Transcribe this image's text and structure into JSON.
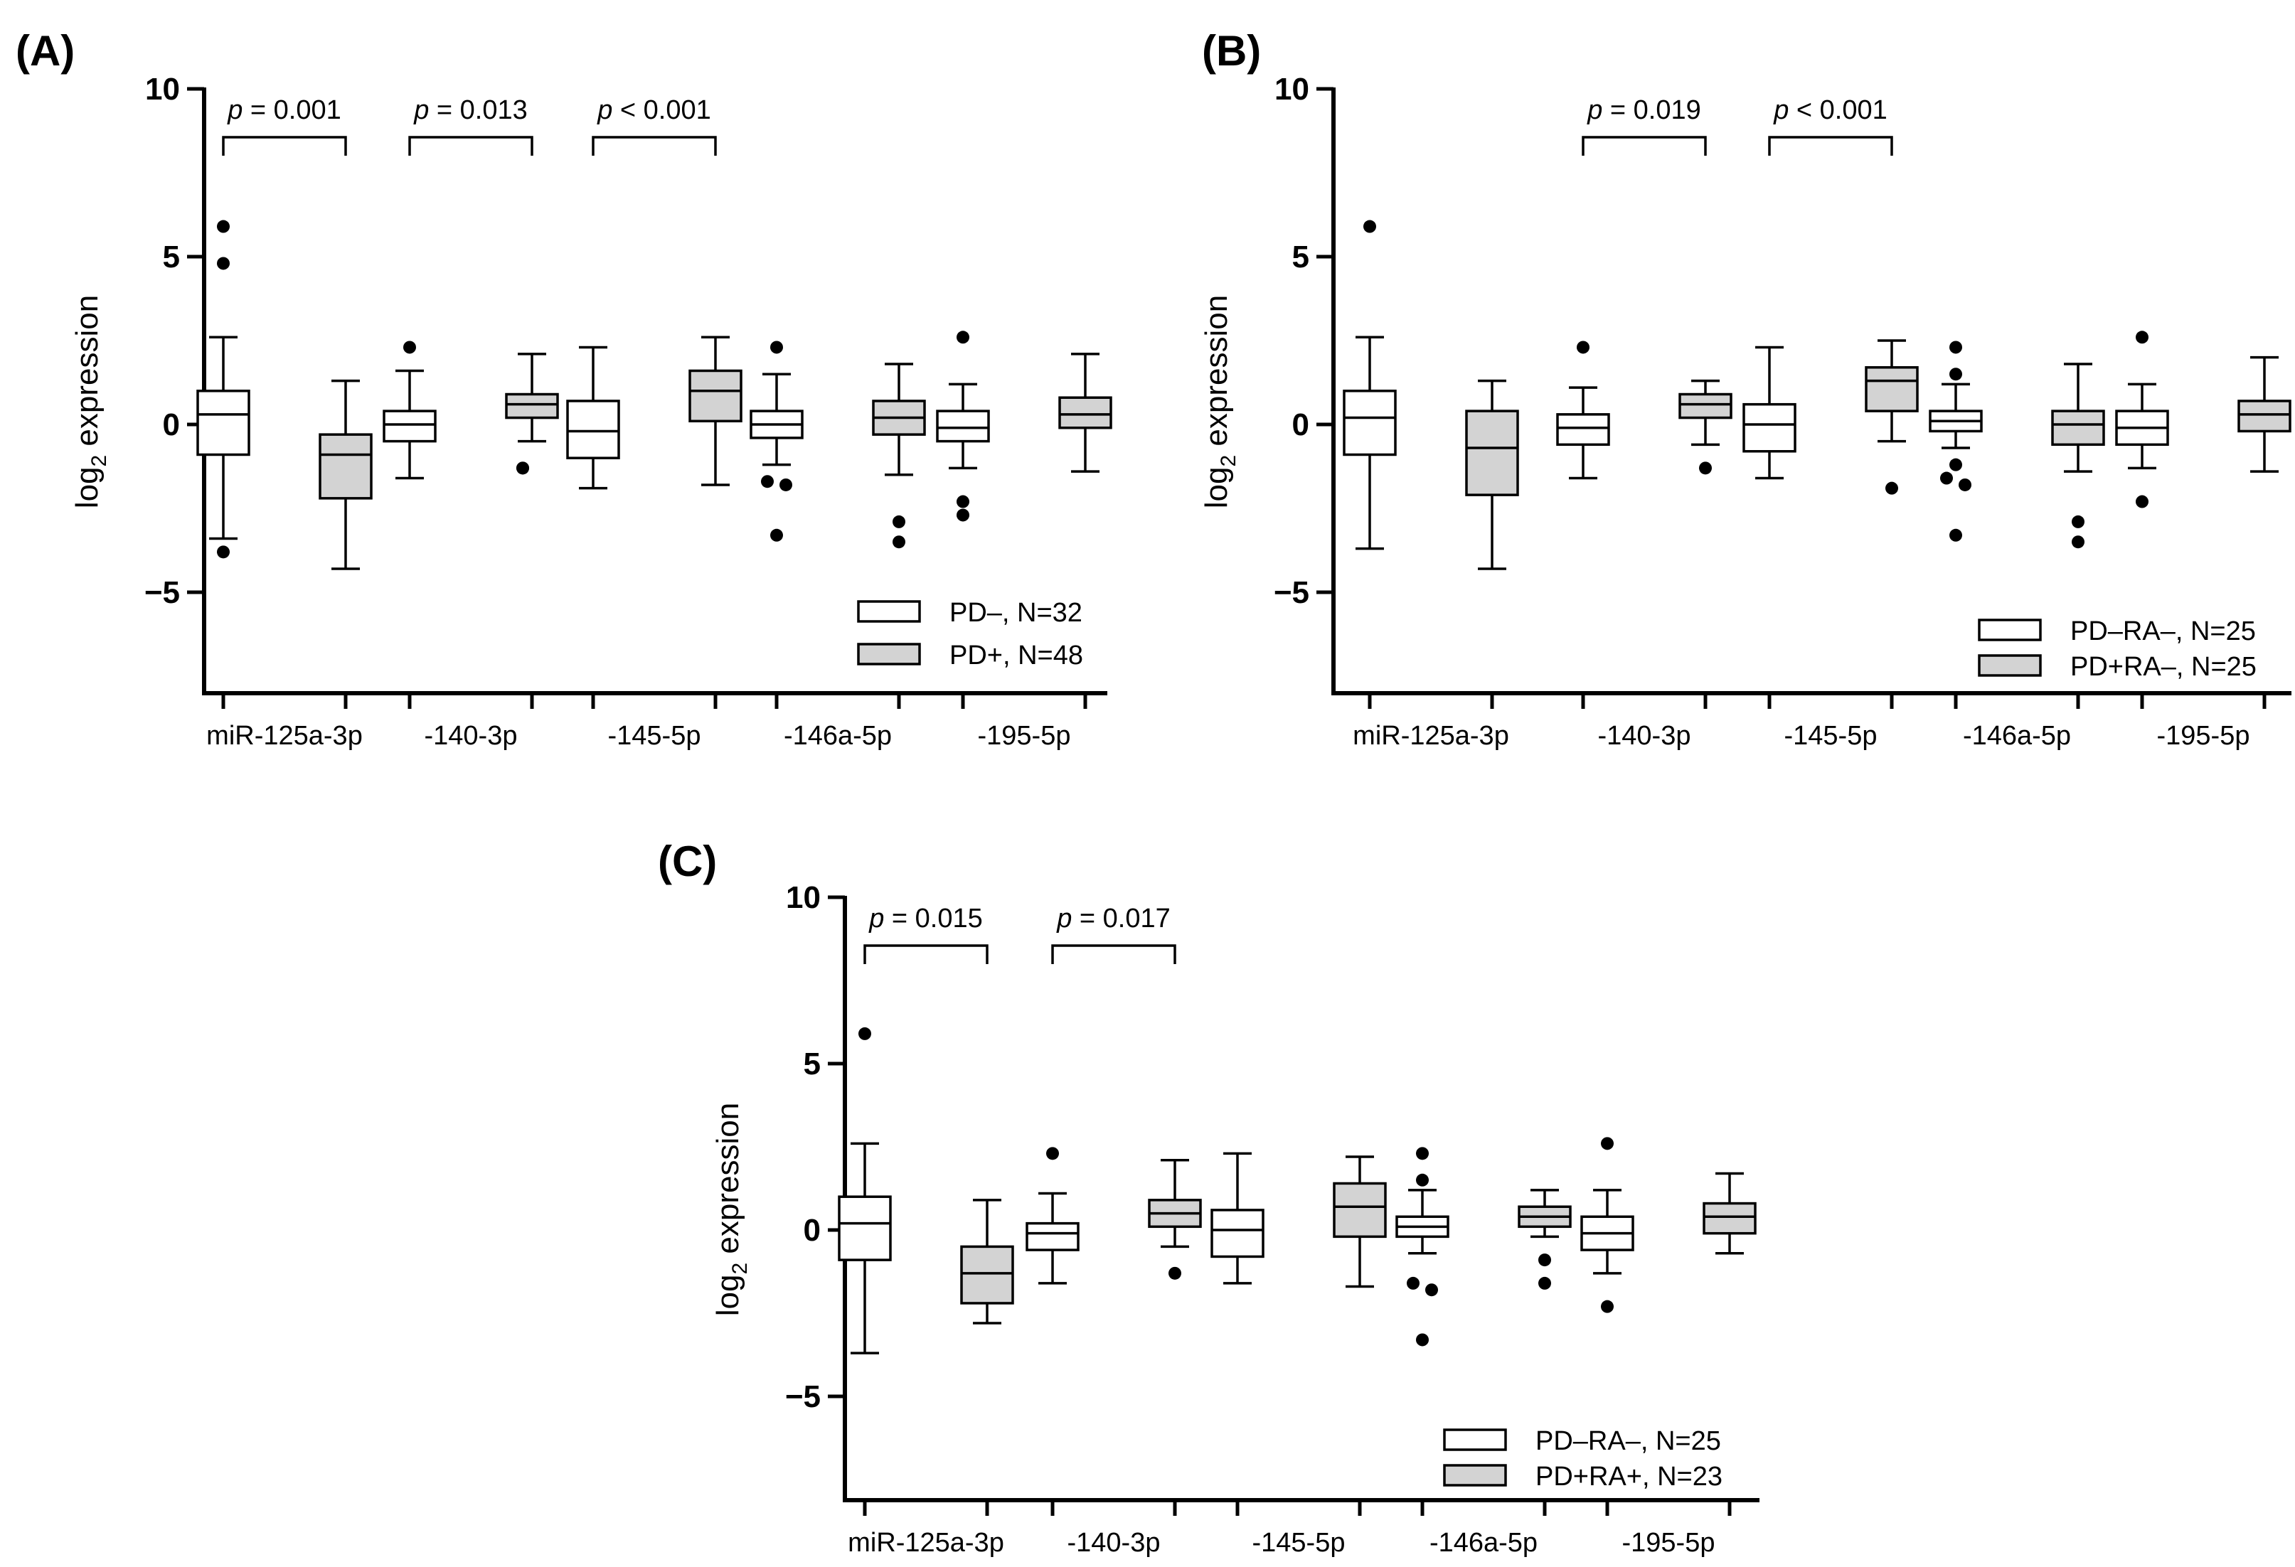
{
  "chart_data": [
    {
      "type": "boxplot",
      "panel_label": "(A)",
      "ylabel": "log",
      "ylabel_sub": "2",
      "ylabel_rest": " expression",
      "ylim": [
        -8,
        10
      ],
      "yticks": [
        10,
        5,
        0,
        -5
      ],
      "ytick_labels": [
        "10",
        "5",
        "0",
        "−5"
      ],
      "categories": [
        "miR-125a-3p",
        "-140-3p",
        "-145-5p",
        "-146a-5p",
        "-195-5p"
      ],
      "series": [
        {
          "name": "PD–, N=32",
          "fill": "#ffffff",
          "boxes": [
            {
              "q1": -0.9,
              "median": 0.3,
              "q3": 1.0,
              "wlo": -3.4,
              "whi": 2.6,
              "outliers": [
                5.9,
                4.8,
                -3.8
              ]
            },
            {
              "q1": -0.5,
              "median": 0.0,
              "q3": 0.4,
              "wlo": -1.6,
              "whi": 1.6,
              "outliers": [
                2.3
              ]
            },
            {
              "q1": -1.0,
              "median": -0.2,
              "q3": 0.7,
              "wlo": -1.9,
              "whi": 2.3,
              "outliers": []
            },
            {
              "q1": -0.4,
              "median": 0.0,
              "q3": 0.4,
              "wlo": -1.2,
              "whi": 1.5,
              "outliers": [
                2.3,
                -1.7,
                -1.8,
                -3.3
              ]
            },
            {
              "q1": -0.5,
              "median": -0.1,
              "q3": 0.4,
              "wlo": -1.3,
              "whi": 1.2,
              "outliers": [
                2.6,
                -2.3,
                -2.7
              ]
            }
          ]
        },
        {
          "name": "PD+, N=48",
          "fill": "#d3d3d3",
          "boxes": [
            {
              "q1": -2.2,
              "median": -0.9,
              "q3": -0.3,
              "wlo": -4.3,
              "whi": 1.3,
              "outliers": []
            },
            {
              "q1": 0.2,
              "median": 0.6,
              "q3": 0.9,
              "wlo": -0.5,
              "whi": 2.1,
              "outliers": [
                -1.3,
                -1.3
              ]
            },
            {
              "q1": 0.1,
              "median": 1.0,
              "q3": 1.6,
              "wlo": -1.8,
              "whi": 2.6,
              "outliers": []
            },
            {
              "q1": -0.3,
              "median": 0.2,
              "q3": 0.7,
              "wlo": -1.5,
              "whi": 1.8,
              "outliers": [
                -2.9,
                -3.5
              ]
            },
            {
              "q1": -0.1,
              "median": 0.3,
              "q3": 0.8,
              "wlo": -1.4,
              "whi": 2.1,
              "outliers": []
            }
          ]
        }
      ],
      "annotations": [
        {
          "category_index": 0,
          "p_label": "p",
          "p_text": " = 0.001"
        },
        {
          "category_index": 1,
          "p_label": "p",
          "p_text": " = 0.013"
        },
        {
          "category_index": 2,
          "p_label": "p",
          "p_text": " < 0.001"
        }
      ],
      "legend_position": "bottom-right"
    },
    {
      "type": "boxplot",
      "panel_label": "(B)",
      "ylabel": "log",
      "ylabel_sub": "2",
      "ylabel_rest": " expression",
      "ylim": [
        -8,
        10
      ],
      "yticks": [
        10,
        5,
        0,
        -5
      ],
      "ytick_labels": [
        "10",
        "5",
        "0",
        "−5"
      ],
      "categories": [
        "miR-125a-3p",
        "-140-3p",
        "-145-5p",
        "-146a-5p",
        "-195-5p"
      ],
      "series": [
        {
          "name": "PD–RA–, N=25",
          "fill": "#ffffff",
          "boxes": [
            {
              "q1": -0.9,
              "median": 0.2,
              "q3": 1.0,
              "wlo": -3.7,
              "whi": 2.6,
              "outliers": [
                5.9
              ]
            },
            {
              "q1": -0.6,
              "median": -0.1,
              "q3": 0.3,
              "wlo": -1.6,
              "whi": 1.1,
              "outliers": [
                2.3
              ]
            },
            {
              "q1": -0.8,
              "median": 0.0,
              "q3": 0.6,
              "wlo": -1.6,
              "whi": 2.3,
              "outliers": []
            },
            {
              "q1": -0.2,
              "median": 0.1,
              "q3": 0.4,
              "wlo": -0.7,
              "whi": 1.2,
              "outliers": [
                2.3,
                1.5,
                -1.2,
                -1.6,
                -1.8,
                -3.3
              ]
            },
            {
              "q1": -0.6,
              "median": -0.1,
              "q3": 0.4,
              "wlo": -1.3,
              "whi": 1.2,
              "outliers": [
                2.6,
                -2.3
              ]
            }
          ]
        },
        {
          "name": "PD+RA–, N=25",
          "fill": "#d3d3d3",
          "boxes": [
            {
              "q1": -2.1,
              "median": -0.7,
              "q3": 0.4,
              "wlo": -4.3,
              "whi": 1.3,
              "outliers": []
            },
            {
              "q1": 0.2,
              "median": 0.6,
              "q3": 0.9,
              "wlo": -0.6,
              "whi": 1.3,
              "outliers": [
                -1.3
              ]
            },
            {
              "q1": 0.4,
              "median": 1.3,
              "q3": 1.7,
              "wlo": -0.5,
              "whi": 2.5,
              "outliers": [
                -1.9
              ]
            },
            {
              "q1": -0.6,
              "median": 0.0,
              "q3": 0.4,
              "wlo": -1.4,
              "whi": 1.8,
              "outliers": [
                -2.9,
                -3.5
              ]
            },
            {
              "q1": -0.2,
              "median": 0.3,
              "q3": 0.7,
              "wlo": -1.4,
              "whi": 2.0,
              "outliers": []
            }
          ]
        }
      ],
      "annotations": [
        {
          "category_index": 1,
          "p_label": "p",
          "p_text": " = 0.019"
        },
        {
          "category_index": 2,
          "p_label": "p",
          "p_text": " < 0.001"
        }
      ],
      "legend_position": "bottom-right"
    },
    {
      "type": "boxplot",
      "panel_label": "(C)",
      "ylabel": "log",
      "ylabel_sub": "2",
      "ylabel_rest": " expression",
      "ylim": [
        -8,
        10
      ],
      "yticks": [
        10,
        5,
        0,
        -5
      ],
      "ytick_labels": [
        "10",
        "5",
        "0",
        "−5"
      ],
      "categories": [
        "miR-125a-3p",
        "-140-3p",
        "-145-5p",
        "-146a-5p",
        "-195-5p"
      ],
      "series": [
        {
          "name": "PD–RA–, N=25",
          "fill": "#ffffff",
          "boxes": [
            {
              "q1": -0.9,
              "median": 0.2,
              "q3": 1.0,
              "wlo": -3.7,
              "whi": 2.6,
              "outliers": [
                5.9
              ]
            },
            {
              "q1": -0.6,
              "median": -0.1,
              "q3": 0.2,
              "wlo": -1.6,
              "whi": 1.1,
              "outliers": [
                2.3
              ]
            },
            {
              "q1": -0.8,
              "median": 0.0,
              "q3": 0.6,
              "wlo": -1.6,
              "whi": 2.3,
              "outliers": []
            },
            {
              "q1": -0.2,
              "median": 0.1,
              "q3": 0.4,
              "wlo": -0.7,
              "whi": 1.2,
              "outliers": [
                2.3,
                1.5,
                -1.6,
                -1.8,
                -3.3
              ]
            },
            {
              "q1": -0.6,
              "median": -0.1,
              "q3": 0.4,
              "wlo": -1.3,
              "whi": 1.2,
              "outliers": [
                2.6,
                -2.3
              ]
            }
          ]
        },
        {
          "name": "PD+RA+, N=23",
          "fill": "#d3d3d3",
          "boxes": [
            {
              "q1": -2.2,
              "median": -1.3,
              "q3": -0.5,
              "wlo": -2.8,
              "whi": 0.9,
              "outliers": []
            },
            {
              "q1": 0.1,
              "median": 0.5,
              "q3": 0.9,
              "wlo": -0.5,
              "whi": 2.1,
              "outliers": [
                -1.3
              ]
            },
            {
              "q1": -0.2,
              "median": 0.7,
              "q3": 1.4,
              "wlo": -1.7,
              "whi": 2.2,
              "outliers": []
            },
            {
              "q1": 0.1,
              "median": 0.4,
              "q3": 0.7,
              "wlo": -0.2,
              "whi": 1.2,
              "outliers": [
                -0.9,
                -1.6
              ]
            },
            {
              "q1": -0.1,
              "median": 0.4,
              "q3": 0.8,
              "wlo": -0.7,
              "whi": 1.7,
              "outliers": []
            }
          ]
        }
      ],
      "annotations": [
        {
          "category_index": 0,
          "p_label": "p",
          "p_text": " = 0.015"
        },
        {
          "category_index": 1,
          "p_label": "p",
          "p_text": " = 0.017"
        }
      ],
      "legend_position": "bottom-right"
    }
  ]
}
